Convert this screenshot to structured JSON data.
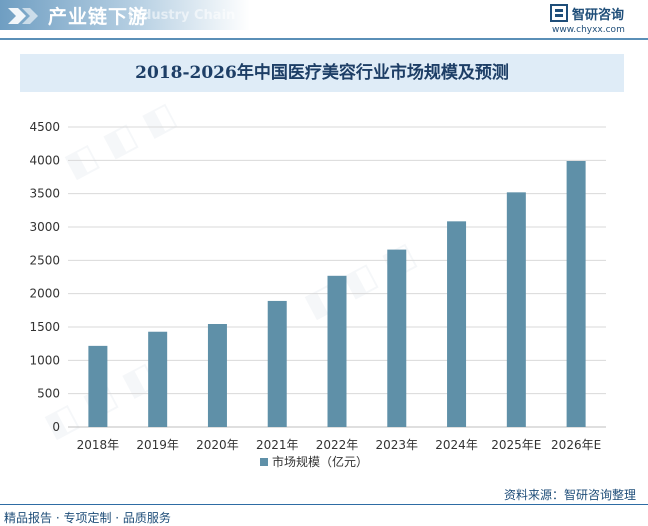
{
  "header": {
    "title": "产业链下游",
    "subtitle": "Industry Chain",
    "brand_name": "智研咨询",
    "brand_url": "www.chyxx.com"
  },
  "chart_data": {
    "type": "bar",
    "title": "2018-2026年中国医疗美容行业市场规模及预测",
    "categories": [
      "2018年",
      "2019年",
      "2020年",
      "2021年",
      "2022年",
      "2023年",
      "2024年",
      "2025年E",
      "2026年E"
    ],
    "series": [
      {
        "name": "市场规模（亿元）",
        "values": [
          1217,
          1429,
          1545,
          1891,
          2268,
          2661,
          3085,
          3520,
          3990
        ]
      }
    ],
    "ylim": [
      0,
      4500
    ],
    "yticks": [
      0,
      500,
      1000,
      1500,
      2000,
      2500,
      3000,
      3500,
      4000,
      4500
    ],
    "ytick_labels": [
      "0",
      "500",
      "1000",
      "1500",
      "2000",
      "2500",
      "3000",
      "3500",
      "4000",
      "4500"
    ],
    "grid": true,
    "legend_position": "bottom",
    "bar_color": "#5f90a8"
  },
  "footer": {
    "source": "资料来源：智研咨询整理",
    "tagline": "精品报告 · 专项定制 · 品质服务"
  }
}
